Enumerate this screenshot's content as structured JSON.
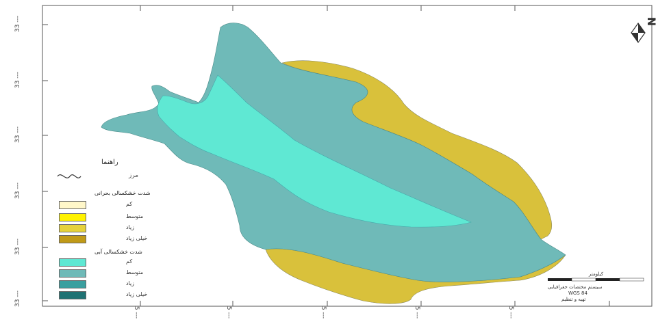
{
  "map": {
    "frame": {
      "stroke": "#555555"
    },
    "colors": {
      "central_zone": "#5fe8d3",
      "middle_zone": "#6fbab8",
      "outer_zone": "#d9c13b",
      "background": "#ffffff"
    },
    "left_ticks": [
      "33 ---",
      "33 ---",
      "33 ---",
      "33 ---",
      "33 ---",
      "33 ---"
    ],
    "bottom_ticks": [
      "5 ---",
      "5 ---",
      "5 ---",
      "5 ---",
      "5 ---"
    ],
    "north_arrow": {
      "letter": "N",
      "icon": "north-arrow-icon"
    },
    "legend": {
      "title": "راهنما",
      "subtitle": "مرز",
      "group1_title": "شدت خشکسالی بحرانی",
      "group1_items": [
        {
          "label": "کم",
          "color": "#fff7c9"
        },
        {
          "label": "متوسط",
          "color": "#fff200"
        },
        {
          "label": "زیاد",
          "color": "#e6d23a"
        },
        {
          "label": "خیلی زیاد",
          "color": "#c09a17"
        }
      ],
      "group2_title": "شدت خشکسالی آبی",
      "group2_items": [
        {
          "label": "کم",
          "color": "#5fe8d3"
        },
        {
          "label": "متوسط",
          "color": "#6fbab8"
        },
        {
          "label": "زیاد",
          "color": "#3a9f9f"
        },
        {
          "label": "خیلی زیاد",
          "color": "#1f7273"
        }
      ]
    },
    "scale_bar": {
      "label_top": "کیلومتر",
      "line1": "سیستم مختصات جغرافیایی",
      "line2": "WGS 84",
      "line3": "تهیه و تنظیم"
    }
  }
}
